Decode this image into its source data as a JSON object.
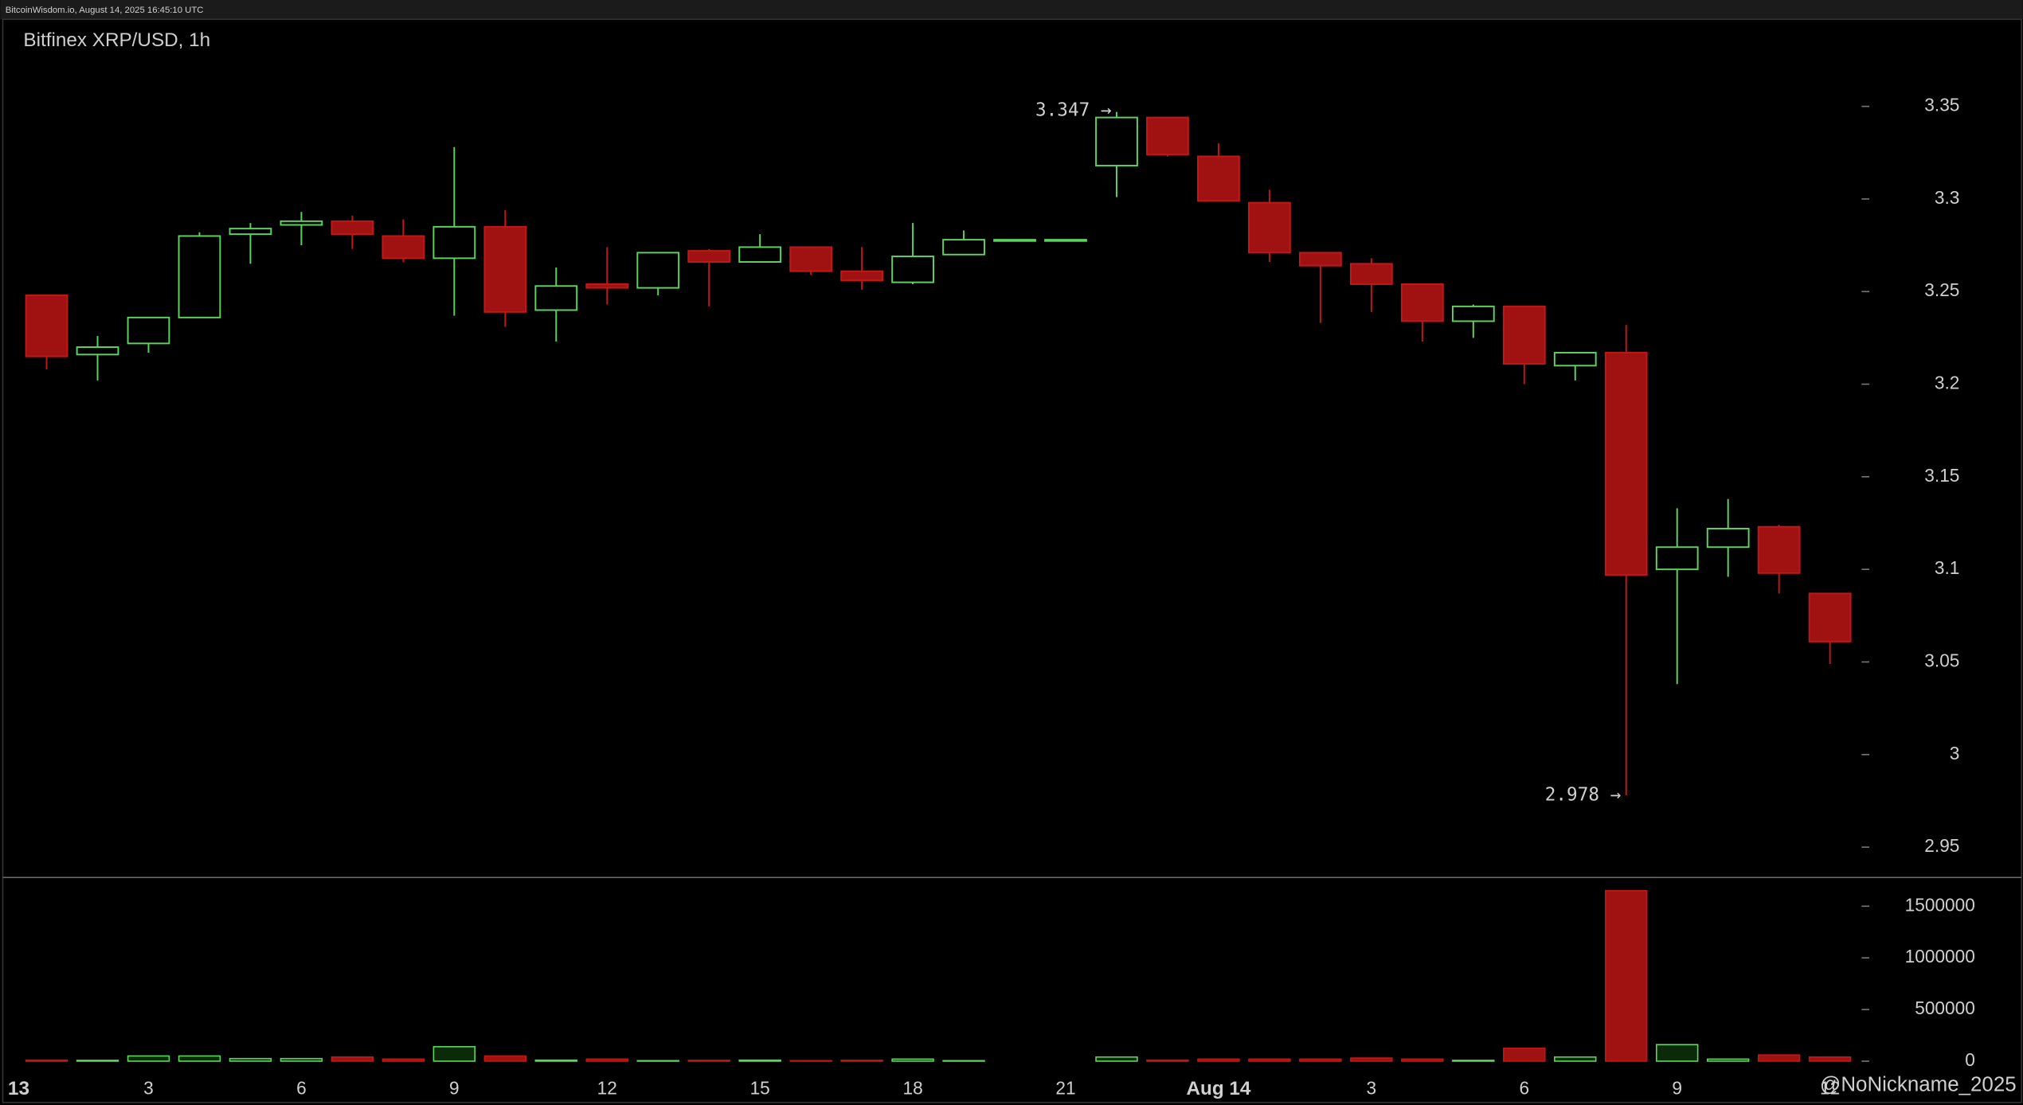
{
  "chart_data": {
    "type": "candlestick",
    "header": "BitcoinWisdom.io, August 14, 2025 16:45:10 UTC",
    "title": "Bitfinex XRP/USD, 1h",
    "watermark": "@NoNickname_2025",
    "categories": [
      "13",
      null,
      null,
      "3",
      null,
      null,
      "6",
      null,
      null,
      "9",
      null,
      null,
      "12",
      null,
      null,
      "15",
      null,
      null,
      "18",
      null,
      null,
      "21",
      null,
      null,
      "Aug 14",
      null,
      null,
      "3",
      null,
      null,
      "6",
      null,
      null,
      "9",
      null,
      null,
      "12"
    ],
    "open": [
      null,
      3.248,
      3.216,
      3.222,
      3.236,
      3.281,
      3.286,
      3.288,
      3.28,
      3.268,
      3.285,
      3.24,
      3.254,
      3.252,
      3.272,
      3.266,
      3.274,
      3.261,
      3.255,
      3.27,
      3.278,
      3.278,
      3.318,
      3.344,
      3.323,
      3.298,
      3.271,
      3.265,
      3.254,
      3.234,
      3.242,
      3.21,
      3.217,
      3.1,
      3.112,
      3.123,
      3.087
    ],
    "high": [
      null,
      3.248,
      3.226,
      3.236,
      3.282,
      3.287,
      3.293,
      3.291,
      3.289,
      3.328,
      3.294,
      3.263,
      3.274,
      3.271,
      3.273,
      3.281,
      3.274,
      3.274,
      3.287,
      3.283,
      3.278,
      3.278,
      3.347,
      3.344,
      3.33,
      3.305,
      3.271,
      3.268,
      3.254,
      3.243,
      3.242,
      3.217,
      3.232,
      3.133,
      3.138,
      3.124,
      3.087
    ],
    "low": [
      null,
      3.208,
      3.202,
      3.217,
      3.236,
      3.265,
      3.275,
      3.273,
      3.266,
      3.237,
      3.231,
      3.223,
      3.243,
      3.248,
      3.242,
      3.266,
      3.259,
      3.251,
      3.254,
      3.27,
      3.278,
      3.278,
      3.301,
      3.323,
      3.299,
      3.266,
      3.233,
      3.239,
      3.223,
      3.225,
      3.2,
      3.202,
      2.978,
      3.038,
      3.096,
      3.087,
      3.049
    ],
    "close": [
      null,
      3.215,
      3.22,
      3.236,
      3.28,
      3.284,
      3.288,
      3.281,
      3.268,
      3.285,
      3.239,
      3.253,
      3.252,
      3.271,
      3.266,
      3.274,
      3.261,
      3.256,
      3.269,
      3.278,
      3.278,
      3.278,
      3.344,
      3.324,
      3.299,
      3.271,
      3.264,
      3.254,
      3.234,
      3.242,
      3.211,
      3.217,
      3.097,
      3.112,
      3.122,
      3.098,
      3.061
    ],
    "volume": [
      null,
      10000,
      8000,
      50000,
      50000,
      25000,
      25000,
      40000,
      20000,
      140000,
      50000,
      10000,
      20000,
      5000,
      8000,
      10000,
      5000,
      8000,
      20000,
      5000,
      0,
      0,
      40000,
      10000,
      20000,
      20000,
      20000,
      30000,
      20000,
      8000,
      125000,
      40000,
      1650000,
      160000,
      20000,
      60000,
      40000
    ],
    "up_color": "#5fd35f",
    "down_color": "#a01212",
    "ylim": [
      2.934,
      3.397
    ],
    "yticks": [
      2.95,
      3,
      3.05,
      3.1,
      3.15,
      3.2,
      3.25,
      3.3,
      3.35
    ],
    "y2lim": [
      0,
      1760000
    ],
    "y2ticks": [
      0,
      500000,
      1000000,
      1500000
    ],
    "annotations": [
      {
        "text": "3.347 →",
        "value": 3.347
      },
      {
        "text": "2.978 →",
        "value": 2.978
      }
    ]
  }
}
